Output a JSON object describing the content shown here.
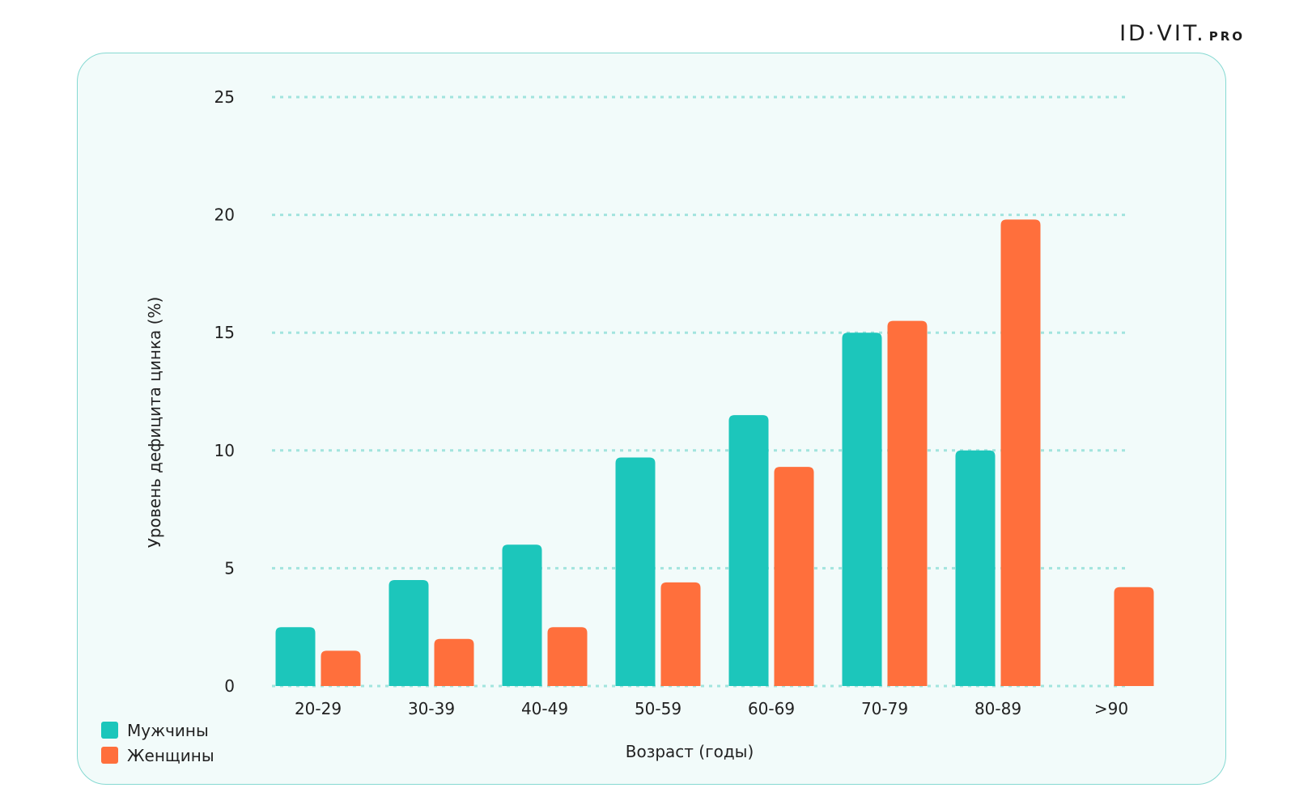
{
  "brand": {
    "main": "ID·VIT.",
    "sub": "PRO"
  },
  "colors": {
    "men": "#1cc6bb",
    "women": "#ff6f3c",
    "grid": "#a2e4de",
    "card_bg": "#f2fbfa"
  },
  "chart_data": {
    "type": "bar",
    "categories": [
      "20-29",
      "30-39",
      "40-49",
      "50-59",
      "60-69",
      "70-79",
      "80-89",
      ">90"
    ],
    "series": [
      {
        "name": "Мужчины",
        "values": [
          2.5,
          4.5,
          6.0,
          9.7,
          11.5,
          15.0,
          10.0,
          null
        ]
      },
      {
        "name": "Женщины",
        "values": [
          1.5,
          2.0,
          2.5,
          4.4,
          9.3,
          15.5,
          19.8,
          4.2
        ]
      }
    ],
    "xlabel": "Возраст (годы)",
    "ylabel": "Уровень дефицита цинка (%)",
    "ylim": [
      0,
      25
    ],
    "yticks": [
      0,
      5,
      10,
      15,
      20,
      25
    ],
    "grid": true,
    "legend_position": "bottom-left"
  }
}
